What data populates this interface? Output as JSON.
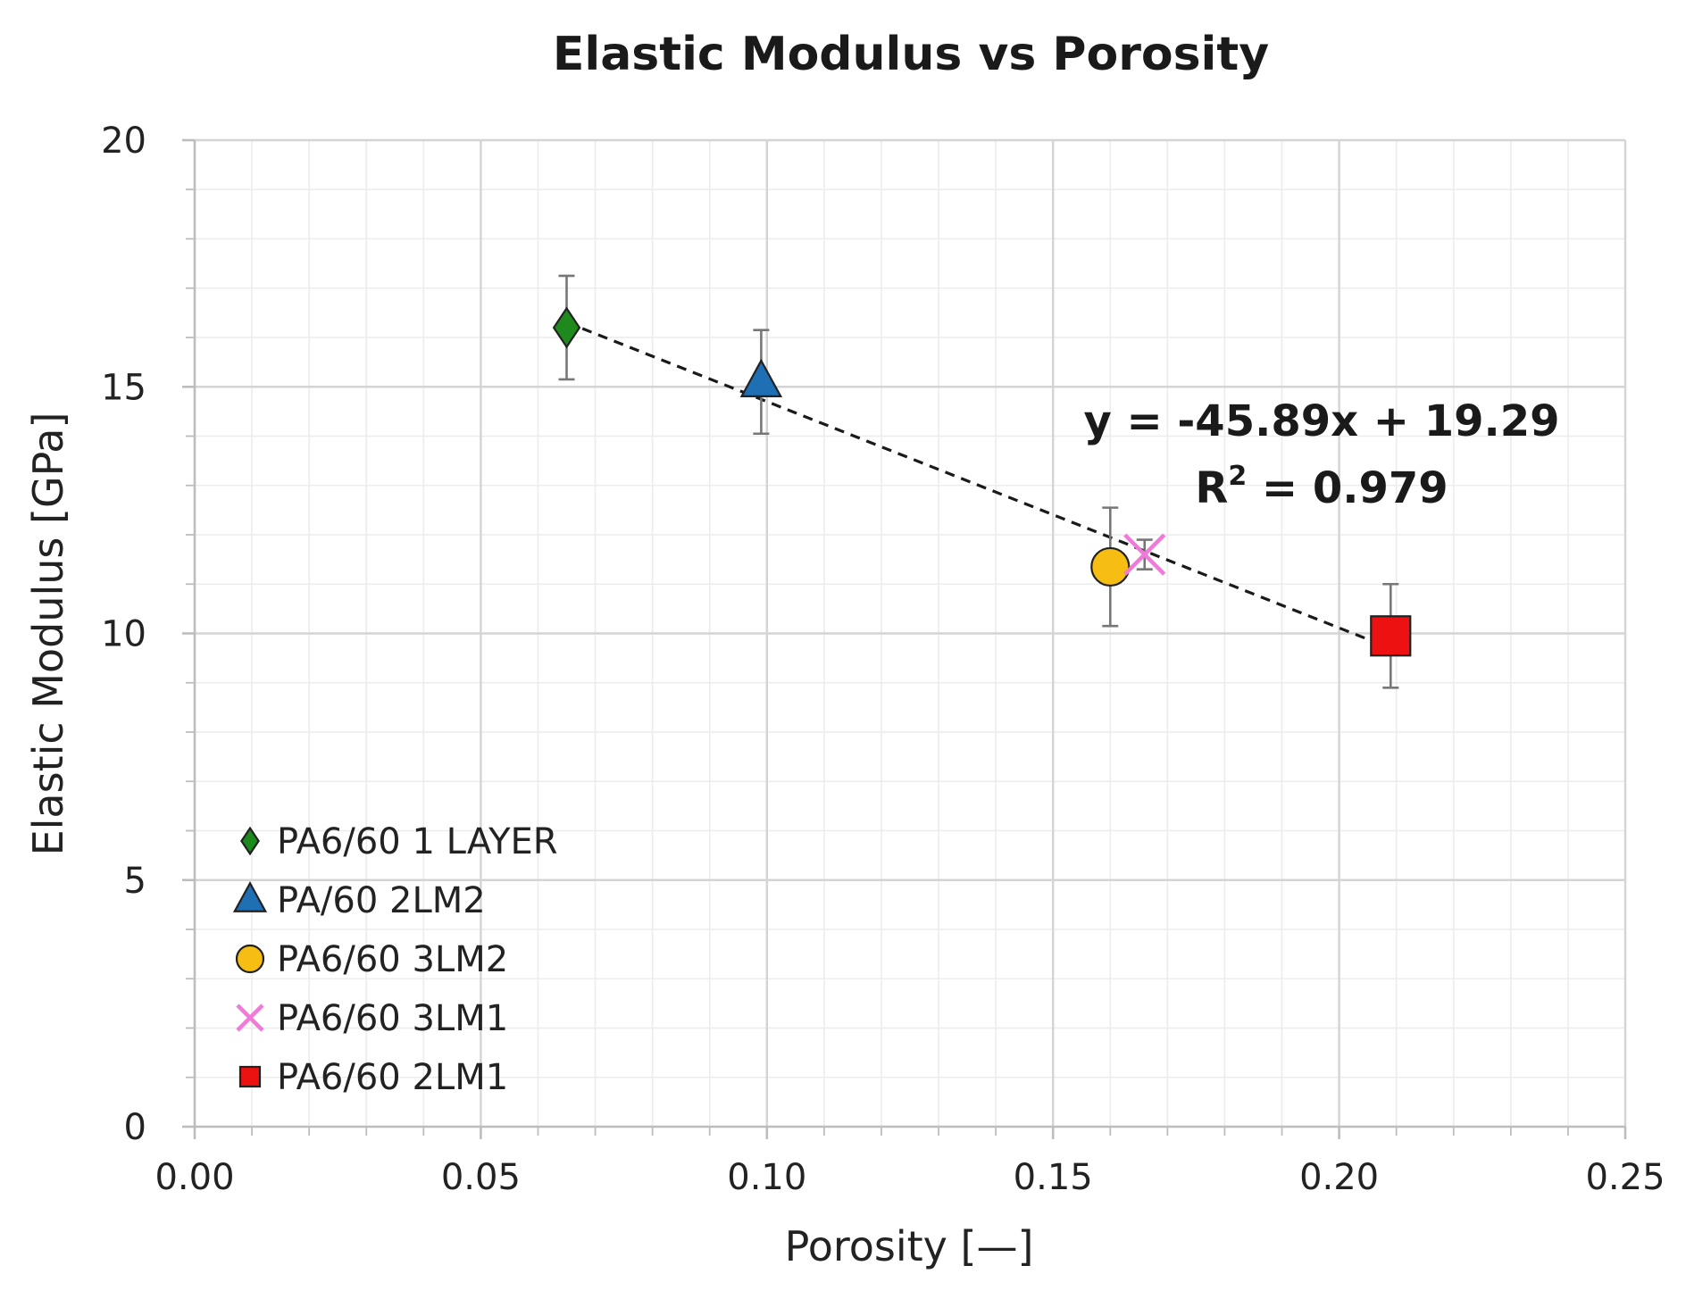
{
  "chart_data": {
    "type": "scatter",
    "title": "Elastic Modulus vs Porosity",
    "xlabel": "Porosity [—]",
    "ylabel": "Elastic Modulus [GPa]",
    "xlim": [
      0.0,
      0.25
    ],
    "ylim": [
      0,
      20
    ],
    "x_ticks": [
      0.0,
      0.05,
      0.1,
      0.15,
      0.2,
      0.25
    ],
    "x_tick_labels": [
      "0.00",
      "0.05",
      "0.10",
      "0.15",
      "0.20",
      "0.25"
    ],
    "y_ticks": [
      0,
      5,
      10,
      15,
      20
    ],
    "y_tick_labels": [
      "0",
      "5",
      "10",
      "15",
      "20"
    ],
    "x_minor_step": 0.01,
    "y_minor_step": 1,
    "grid": true,
    "legend_position": "bottom-left",
    "series": [
      {
        "name": "PA6/60 1 LAYER",
        "marker": "diamond",
        "color": "#1e8a1e",
        "x": 0.065,
        "y": 16.2,
        "yerr": 1.05
      },
      {
        "name": "PA/60 2LM2",
        "marker": "triangle",
        "color": "#1f6fb4",
        "x": 0.099,
        "y": 15.1,
        "yerr": 1.05
      },
      {
        "name": "PA6/60 3LM2",
        "marker": "circle",
        "color": "#f6be12",
        "x": 0.16,
        "y": 11.35,
        "yerr": 1.2
      },
      {
        "name": "PA6/60 3LM1",
        "marker": "x",
        "color": "#f07ad8",
        "x": 0.166,
        "y": 11.6,
        "yerr": 0.3
      },
      {
        "name": "PA6/60 2LM1",
        "marker": "square",
        "color": "#ee1111",
        "x": 0.209,
        "y": 9.95,
        "yerr": 1.05
      }
    ],
    "trendline": {
      "slope": -45.89,
      "intercept": 19.29,
      "x_range": [
        0.065,
        0.209
      ],
      "style": "dashed",
      "equation_label": "y = -45.89x + 19.29",
      "r2_prefix": "R",
      "r2_sup": "2",
      "r2_suffix": " = 0.979"
    }
  }
}
